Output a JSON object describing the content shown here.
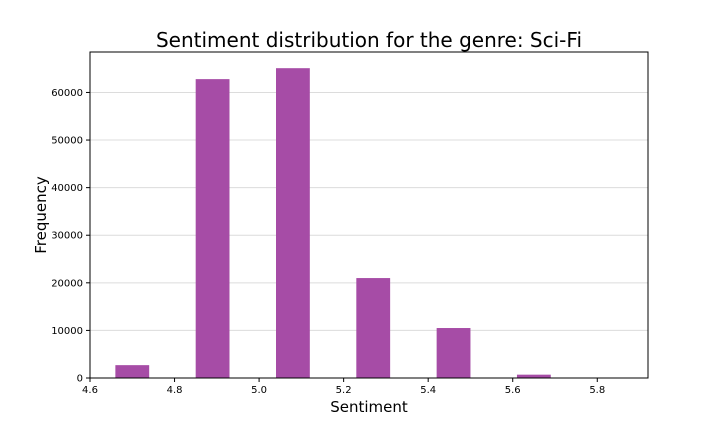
{
  "chart_data": {
    "type": "bar",
    "title": "Sentiment distribution for the genre: Sci-Fi",
    "xlabel": "Sentiment",
    "ylabel": "Frequency",
    "xlim": [
      4.6,
      5.92
    ],
    "ylim": [
      0,
      68500
    ],
    "grid": "horizontal",
    "bar_color": "#a64ca6",
    "bins": [
      {
        "x0": 4.66,
        "x1": 4.74,
        "value": 2700
      },
      {
        "x0": 4.85,
        "x1": 4.93,
        "value": 62800
      },
      {
        "x0": 5.04,
        "x1": 5.12,
        "value": 65100
      },
      {
        "x0": 5.23,
        "x1": 5.31,
        "value": 21000
      },
      {
        "x0": 5.42,
        "x1": 5.5,
        "value": 10500
      },
      {
        "x0": 5.61,
        "x1": 5.69,
        "value": 700
      }
    ],
    "xticks": [
      "4.6",
      "4.8",
      "5.0",
      "5.2",
      "5.4",
      "5.6",
      "5.8"
    ],
    "yticks": [
      "0",
      "10000",
      "20000",
      "30000",
      "40000",
      "50000",
      "60000"
    ]
  }
}
